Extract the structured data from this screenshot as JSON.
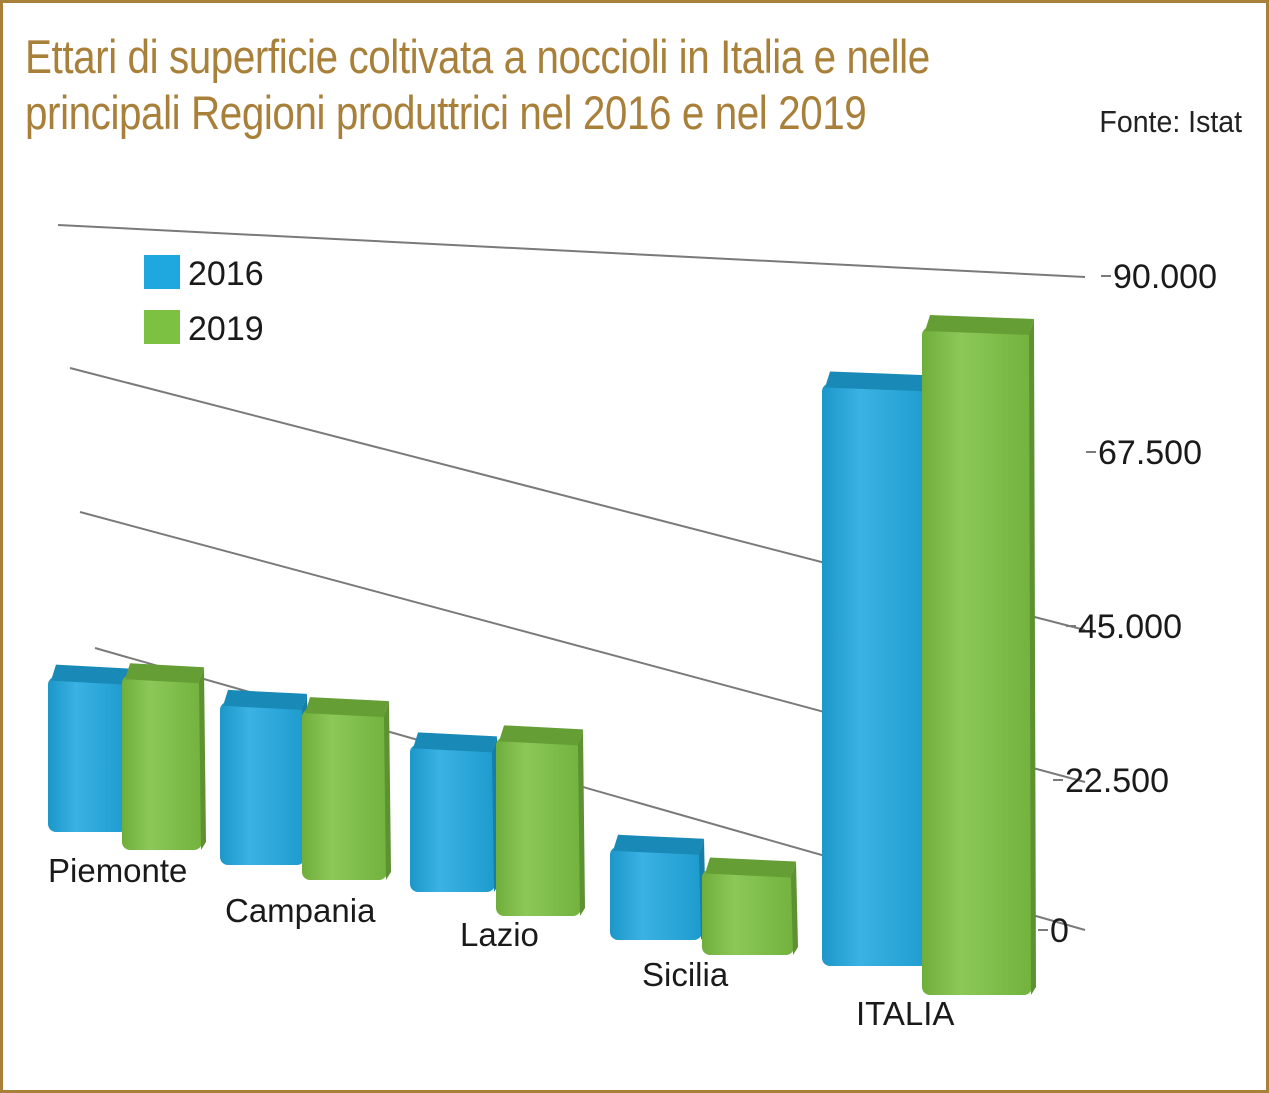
{
  "header": {
    "title": "Ettari di superficie coltivata a noccioli in Italia e nelle principali Regioni produttrici nel 2016 e nel 2019",
    "source": "Fonte: Istat"
  },
  "colors": {
    "frame": "#a9803a",
    "title": "#a9803a",
    "series_2016": "#1fa8df",
    "series_2019": "#7cc142",
    "grid": "#7a7a7a"
  },
  "chart_data": {
    "type": "bar",
    "title": "Ettari di superficie coltivata a noccioli in Italia e nelle principali Regioni produttrici nel 2016 e nel 2019",
    "categories": [
      "Piemonte",
      "Campania",
      "Lazio",
      "Sicilia",
      "ITALIA"
    ],
    "series": [
      {
        "name": "2016",
        "values": [
          20000,
          21000,
          19000,
          12000,
          75000
        ]
      },
      {
        "name": "2019",
        "values": [
          22500,
          22000,
          23000,
          11000,
          86000
        ]
      }
    ],
    "yticks": [
      "0",
      "22.500",
      "45.000",
      "67.500",
      "90.000"
    ],
    "ylim": [
      0,
      90000
    ],
    "grid": true,
    "legend": "top-left",
    "style": "3d-perspective"
  }
}
